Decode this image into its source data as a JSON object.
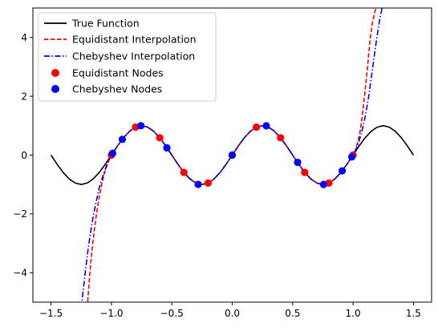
{
  "chart_data": {
    "type": "line",
    "title": "",
    "xlabel": "",
    "ylabel": "",
    "xlim": [
      -1.65,
      1.65
    ],
    "ylim": [
      -5,
      5
    ],
    "xticks": [
      -1.5,
      -1.0,
      -0.5,
      0.0,
      0.5,
      1.0,
      1.5
    ],
    "xtick_labels": [
      "−1.5",
      "−1.0",
      "−0.5",
      "0.0",
      "0.5",
      "1.0",
      "1.5"
    ],
    "yticks": [
      -4,
      -2,
      0,
      2,
      4
    ],
    "ytick_labels": [
      "−4",
      "−2",
      "0",
      "2",
      "4"
    ],
    "grid": false,
    "legend_position": "top-left",
    "series": [
      {
        "name": "True Function",
        "kind": "line",
        "style": "solid",
        "color": "#000000",
        "x": [
          -1.5,
          -1.45,
          -1.4,
          -1.35,
          -1.3,
          -1.25,
          -1.2,
          -1.15,
          -1.1,
          -1.05,
          -1.0,
          -0.95,
          -0.9,
          -0.85,
          -0.8,
          -0.75,
          -0.7,
          -0.65,
          -0.6,
          -0.55,
          -0.5,
          -0.45,
          -0.4,
          -0.35,
          -0.3,
          -0.25,
          -0.2,
          -0.15,
          -0.1,
          -0.05,
          0.0,
          0.05,
          0.1,
          0.15,
          0.2,
          0.25,
          0.3,
          0.35,
          0.4,
          0.45,
          0.5,
          0.55,
          0.6,
          0.65,
          0.7,
          0.75,
          0.8,
          0.85,
          0.9,
          0.95,
          1.0,
          1.05,
          1.1,
          1.15,
          1.2,
          1.25,
          1.3,
          1.35,
          1.4,
          1.45,
          1.5
        ],
        "y": [
          0.0,
          -0.309,
          -0.588,
          -0.809,
          -0.951,
          -1.0,
          -0.951,
          -0.809,
          -0.588,
          -0.309,
          0.0,
          0.309,
          0.588,
          0.809,
          0.951,
          1.0,
          0.951,
          0.809,
          0.588,
          0.309,
          0.0,
          -0.309,
          -0.588,
          -0.809,
          -0.951,
          -1.0,
          -0.951,
          -0.809,
          -0.588,
          -0.309,
          0.0,
          0.309,
          0.588,
          0.809,
          0.951,
          1.0,
          0.951,
          0.809,
          0.588,
          0.309,
          0.0,
          -0.309,
          -0.588,
          -0.809,
          -0.951,
          -1.0,
          -0.951,
          -0.809,
          -0.588,
          -0.309,
          0.0,
          0.309,
          0.588,
          0.809,
          0.951,
          1.0,
          0.951,
          0.809,
          0.588,
          0.309,
          0.0
        ]
      },
      {
        "name": "Equidistant Interpolation",
        "kind": "line",
        "style": "dashed",
        "color": "#ff0000",
        "x": [
          -1.2,
          -1.18,
          -1.16,
          -1.14,
          -1.12,
          -1.1,
          -1.08,
          -1.06,
          -1.04,
          -1.02,
          -1.0,
          -0.95,
          -0.9,
          -0.85,
          -0.8,
          -0.75,
          -0.7,
          -0.65,
          -0.6,
          -0.55,
          -0.5,
          -0.45,
          -0.4,
          -0.35,
          -0.3,
          -0.25,
          -0.2,
          -0.15,
          -0.1,
          -0.05,
          0.0,
          0.05,
          0.1,
          0.15,
          0.2,
          0.25,
          0.3,
          0.35,
          0.4,
          0.45,
          0.5,
          0.55,
          0.6,
          0.65,
          0.7,
          0.75,
          0.8,
          0.85,
          0.9,
          0.95,
          1.0,
          1.02,
          1.04,
          1.06,
          1.08,
          1.1,
          1.12,
          1.14,
          1.16,
          1.18,
          1.2
        ],
        "y": [
          -5.2,
          -4.1,
          -3.2,
          -2.5,
          -1.9,
          -1.4,
          -1.0,
          -0.65,
          -0.4,
          -0.18,
          0.0,
          0.309,
          0.588,
          0.809,
          0.951,
          1.0,
          0.951,
          0.809,
          0.588,
          0.309,
          0.0,
          -0.309,
          -0.588,
          -0.809,
          -0.951,
          -1.0,
          -0.951,
          -0.809,
          -0.588,
          -0.309,
          0.0,
          0.309,
          0.588,
          0.809,
          0.951,
          1.0,
          0.951,
          0.809,
          0.588,
          0.309,
          0.0,
          -0.309,
          -0.588,
          -0.809,
          -0.951,
          -1.0,
          -0.951,
          -0.809,
          -0.588,
          -0.309,
          0.0,
          0.18,
          0.45,
          0.85,
          1.45,
          2.2,
          3.0,
          3.9,
          4.5,
          4.85,
          5.2
        ]
      },
      {
        "name": "Chebyshev Interpolation",
        "kind": "line",
        "style": "dashdot",
        "color": "#0000ff",
        "x": [
          -1.25,
          -1.22,
          -1.19,
          -1.16,
          -1.13,
          -1.1,
          -1.07,
          -1.04,
          -1.01,
          -0.99,
          -0.95,
          -0.9,
          -0.85,
          -0.8,
          -0.75,
          -0.7,
          -0.65,
          -0.6,
          -0.55,
          -0.5,
          -0.45,
          -0.4,
          -0.35,
          -0.3,
          -0.25,
          -0.2,
          -0.15,
          -0.1,
          -0.05,
          0.0,
          0.05,
          0.1,
          0.15,
          0.2,
          0.25,
          0.3,
          0.35,
          0.4,
          0.45,
          0.5,
          0.55,
          0.6,
          0.65,
          0.7,
          0.75,
          0.8,
          0.85,
          0.9,
          0.95,
          0.99,
          1.01,
          1.04,
          1.07,
          1.1,
          1.13,
          1.16,
          1.19,
          1.22,
          1.25
        ],
        "y": [
          -5.2,
          -4.1,
          -3.1,
          -2.3,
          -1.65,
          -1.1,
          -0.7,
          -0.35,
          -0.06,
          0.06,
          0.309,
          0.588,
          0.809,
          0.951,
          1.0,
          0.951,
          0.809,
          0.588,
          0.309,
          0.0,
          -0.309,
          -0.588,
          -0.809,
          -0.951,
          -1.0,
          -0.951,
          -0.809,
          -0.588,
          -0.309,
          0.0,
          0.309,
          0.588,
          0.809,
          0.951,
          1.0,
          0.951,
          0.809,
          0.588,
          0.309,
          0.0,
          -0.309,
          -0.588,
          -0.809,
          -0.951,
          -1.0,
          -0.951,
          -0.809,
          -0.588,
          -0.309,
          -0.06,
          0.06,
          0.35,
          0.75,
          1.3,
          2.0,
          2.9,
          3.8,
          4.6,
          5.2
        ]
      },
      {
        "name": "Equidistant Nodes",
        "kind": "scatter",
        "color": "#ff0000",
        "x": [
          -1.0,
          -0.8,
          -0.6,
          -0.4,
          -0.2,
          0.0,
          0.2,
          0.4,
          0.6,
          0.8,
          1.0
        ],
        "y": [
          0.0,
          0.951,
          0.588,
          -0.588,
          -0.951,
          0.0,
          0.951,
          0.588,
          -0.588,
          -0.951,
          0.0
        ]
      },
      {
        "name": "Chebyshev Nodes",
        "kind": "scatter",
        "color": "#0000ff",
        "x": [
          -0.99,
          -0.91,
          -0.756,
          -0.541,
          -0.282,
          0.0,
          0.282,
          0.541,
          0.756,
          0.91,
          0.99
        ],
        "y": [
          0.062,
          0.536,
          0.999,
          0.247,
          -0.996,
          0.0,
          0.996,
          -0.247,
          -0.999,
          -0.536,
          -0.062
        ]
      }
    ]
  }
}
